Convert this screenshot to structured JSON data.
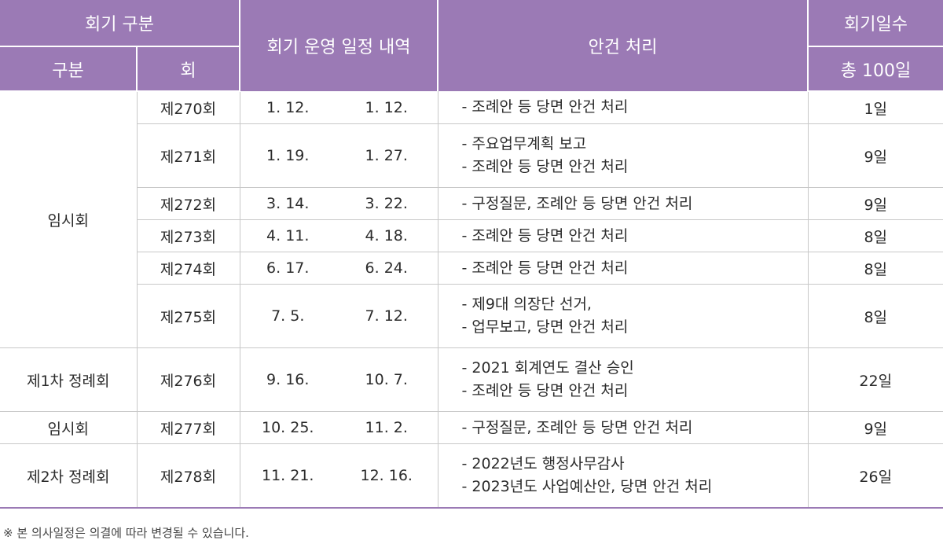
{
  "header": {
    "session_group": "회기 구분",
    "type": "구분",
    "session_no": "회",
    "schedule": "회기 운영 일정 내역",
    "agenda": "안건 처리",
    "days": "회기일수",
    "total": "총 100일"
  },
  "groups": [
    "임시회",
    "제1차 정례회",
    "임시회",
    "제2차 정례회"
  ],
  "rows": [
    {
      "session": "제270회",
      "start": "1. 12.",
      "end": "1. 12.",
      "items": [
        "- 조례안 등 당면 안건 처리"
      ],
      "days": "1일"
    },
    {
      "session": "제271회",
      "start": "1. 19.",
      "end": "1. 27.",
      "items": [
        "- 주요업무계획 보고",
        "- 조례안 등 당면 안건 처리"
      ],
      "days": "9일"
    },
    {
      "session": "제272회",
      "start": "3. 14.",
      "end": "3. 22.",
      "items": [
        "- 구정질문, 조례안 등 당면 안건 처리"
      ],
      "days": "9일"
    },
    {
      "session": "제273회",
      "start": "4. 11.",
      "end": "4. 18.",
      "items": [
        "- 조례안 등 당면 안건 처리"
      ],
      "days": "8일"
    },
    {
      "session": "제274회",
      "start": "6. 17.",
      "end": "6. 24.",
      "items": [
        "- 조례안 등 당면 안건 처리"
      ],
      "days": "8일"
    },
    {
      "session": "제275회",
      "start": "7. 5.",
      "end": "7. 12.",
      "items": [
        "- 제9대 의장단 선거,",
        "- 업무보고, 당면 안건 처리"
      ],
      "days": "8일"
    },
    {
      "session": "제276회",
      "start": "9. 16.",
      "end": "10. 7.",
      "items": [
        "- 2021 회계연도 결산 승인",
        "- 조례안 등 당면 안건 처리"
      ],
      "days": "22일"
    },
    {
      "session": "제277회",
      "start": "10. 25.",
      "end": "11. 2.",
      "items": [
        "- 구정질문, 조례안 등 당면 안건 처리"
      ],
      "days": "9일"
    },
    {
      "session": "제278회",
      "start": "11. 21.",
      "end": "12. 16.",
      "items": [
        "- 2022년도 행정사무감사",
        "- 2023년도 사업예산안, 당면 안건 처리"
      ],
      "days": "26일"
    }
  ],
  "note": "※ 본 의사일정은 의결에 따라 변경될 수 있습니다."
}
